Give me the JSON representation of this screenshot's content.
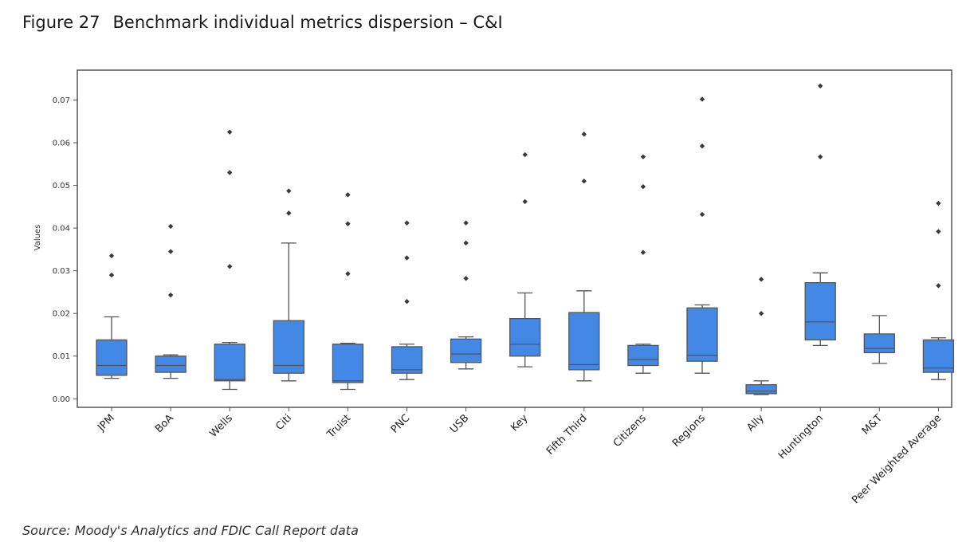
{
  "figure": {
    "number": "Figure 27",
    "title": "Benchmark individual metrics dispersion – C&I"
  },
  "source": "Source: Moody's Analytics and FDIC Call Report data",
  "chart_data": {
    "type": "box",
    "ylabel": "Values",
    "ylim": [
      -0.002,
      0.077
    ],
    "yticks": [
      0.0,
      0.01,
      0.02,
      0.03,
      0.04,
      0.05,
      0.06,
      0.07
    ],
    "ytick_labels": [
      "0.00",
      "0.01",
      "0.02",
      "0.03",
      "0.04",
      "0.05",
      "0.06",
      "0.07"
    ],
    "grid": false,
    "box_color": "#4488e6",
    "categories": [
      "JPM",
      "BoA",
      "Wells",
      "Citi",
      "Truist",
      "PNC",
      "USB",
      "Key",
      "Fifth Third",
      "Citizens",
      "Regions",
      "Ally",
      "Huntington",
      "M&T",
      "Peer Weighted Average"
    ],
    "boxes": [
      {
        "min": 0.0048,
        "q1": 0.0055,
        "median": 0.0078,
        "q3": 0.0138,
        "max": 0.0192,
        "outliers": [
          0.029,
          0.0335
        ]
      },
      {
        "min": 0.0048,
        "q1": 0.0062,
        "median": 0.0078,
        "q3": 0.01,
        "max": 0.0103,
        "outliers": [
          0.0243,
          0.0345,
          0.0404
        ]
      },
      {
        "min": 0.0022,
        "q1": 0.0042,
        "median": 0.0045,
        "q3": 0.0128,
        "max": 0.0132,
        "outliers": [
          0.031,
          0.053,
          0.0625
        ]
      },
      {
        "min": 0.0042,
        "q1": 0.006,
        "median": 0.0078,
        "q3": 0.0183,
        "max": 0.0365,
        "outliers": [
          0.0435,
          0.0487
        ]
      },
      {
        "min": 0.0022,
        "q1": 0.0038,
        "median": 0.0042,
        "q3": 0.0128,
        "max": 0.013,
        "outliers": [
          0.0293,
          0.041,
          0.0478
        ]
      },
      {
        "min": 0.0045,
        "q1": 0.006,
        "median": 0.0068,
        "q3": 0.0122,
        "max": 0.0128,
        "outliers": [
          0.0228,
          0.033,
          0.0412
        ]
      },
      {
        "min": 0.007,
        "q1": 0.0085,
        "median": 0.0105,
        "q3": 0.014,
        "max": 0.0145,
        "outliers": [
          0.0282,
          0.0365,
          0.0412
        ]
      },
      {
        "min": 0.0075,
        "q1": 0.01,
        "median": 0.0128,
        "q3": 0.0188,
        "max": 0.0248,
        "outliers": [
          0.0462,
          0.0572
        ]
      },
      {
        "min": 0.0042,
        "q1": 0.0068,
        "median": 0.008,
        "q3": 0.0202,
        "max": 0.0253,
        "outliers": [
          0.051,
          0.062
        ]
      },
      {
        "min": 0.006,
        "q1": 0.0078,
        "median": 0.0092,
        "q3": 0.0125,
        "max": 0.0128,
        "outliers": [
          0.0343,
          0.0497,
          0.0567
        ]
      },
      {
        "min": 0.006,
        "q1": 0.0088,
        "median": 0.0102,
        "q3": 0.0213,
        "max": 0.022,
        "outliers": [
          0.0432,
          0.0592,
          0.0702
        ]
      },
      {
        "min": 0.001,
        "q1": 0.0012,
        "median": 0.0018,
        "q3": 0.0033,
        "max": 0.0042,
        "outliers": [
          0.02,
          0.028
        ]
      },
      {
        "min": 0.0125,
        "q1": 0.0138,
        "median": 0.018,
        "q3": 0.0272,
        "max": 0.0295,
        "outliers": [
          0.0567,
          0.0733
        ]
      },
      {
        "min": 0.0083,
        "q1": 0.0108,
        "median": 0.0118,
        "q3": 0.0152,
        "max": 0.0195,
        "outliers": []
      },
      {
        "min": 0.0045,
        "q1": 0.0062,
        "median": 0.0072,
        "q3": 0.0138,
        "max": 0.0143,
        "outliers": [
          0.0265,
          0.0392,
          0.0458
        ]
      }
    ]
  }
}
